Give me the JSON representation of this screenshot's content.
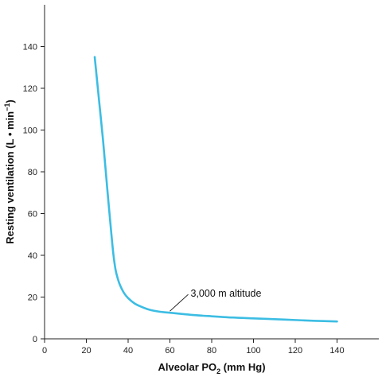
{
  "chart_data": {
    "type": "line",
    "title": "",
    "xlabel": {
      "main": "Alveolar PO",
      "sub": "2",
      "tail": " (mm Hg)"
    },
    "ylabel": {
      "main": "Resting ventilation (L • min",
      "sup": "−1",
      "tail": ")"
    },
    "xlim": [
      0,
      160
    ],
    "ylim": [
      0,
      160
    ],
    "xticks": [
      0,
      20,
      40,
      60,
      80,
      100,
      120,
      140
    ],
    "yticks": [
      0,
      20,
      40,
      60,
      80,
      100,
      120,
      140
    ],
    "series": [
      {
        "color": "#3cbde3",
        "x": [
          24,
          26,
          28,
          30,
          32,
          33,
          34,
          35,
          36,
          38,
          40,
          43,
          46,
          50,
          55,
          60,
          70,
          80,
          90,
          100,
          110,
          120,
          130,
          140
        ],
        "y": [
          135,
          115,
          95,
          72,
          50,
          40,
          33,
          29,
          26,
          22,
          19.5,
          17,
          15.5,
          14,
          13,
          12.5,
          11.5,
          10.8,
          10.2,
          9.8,
          9.4,
          9,
          8.6,
          8.3
        ]
      }
    ],
    "annotations": [
      {
        "text": "3,000 m altitude",
        "x": 60,
        "y": 12.5
      }
    ],
    "grid": false,
    "legend": "none"
  }
}
